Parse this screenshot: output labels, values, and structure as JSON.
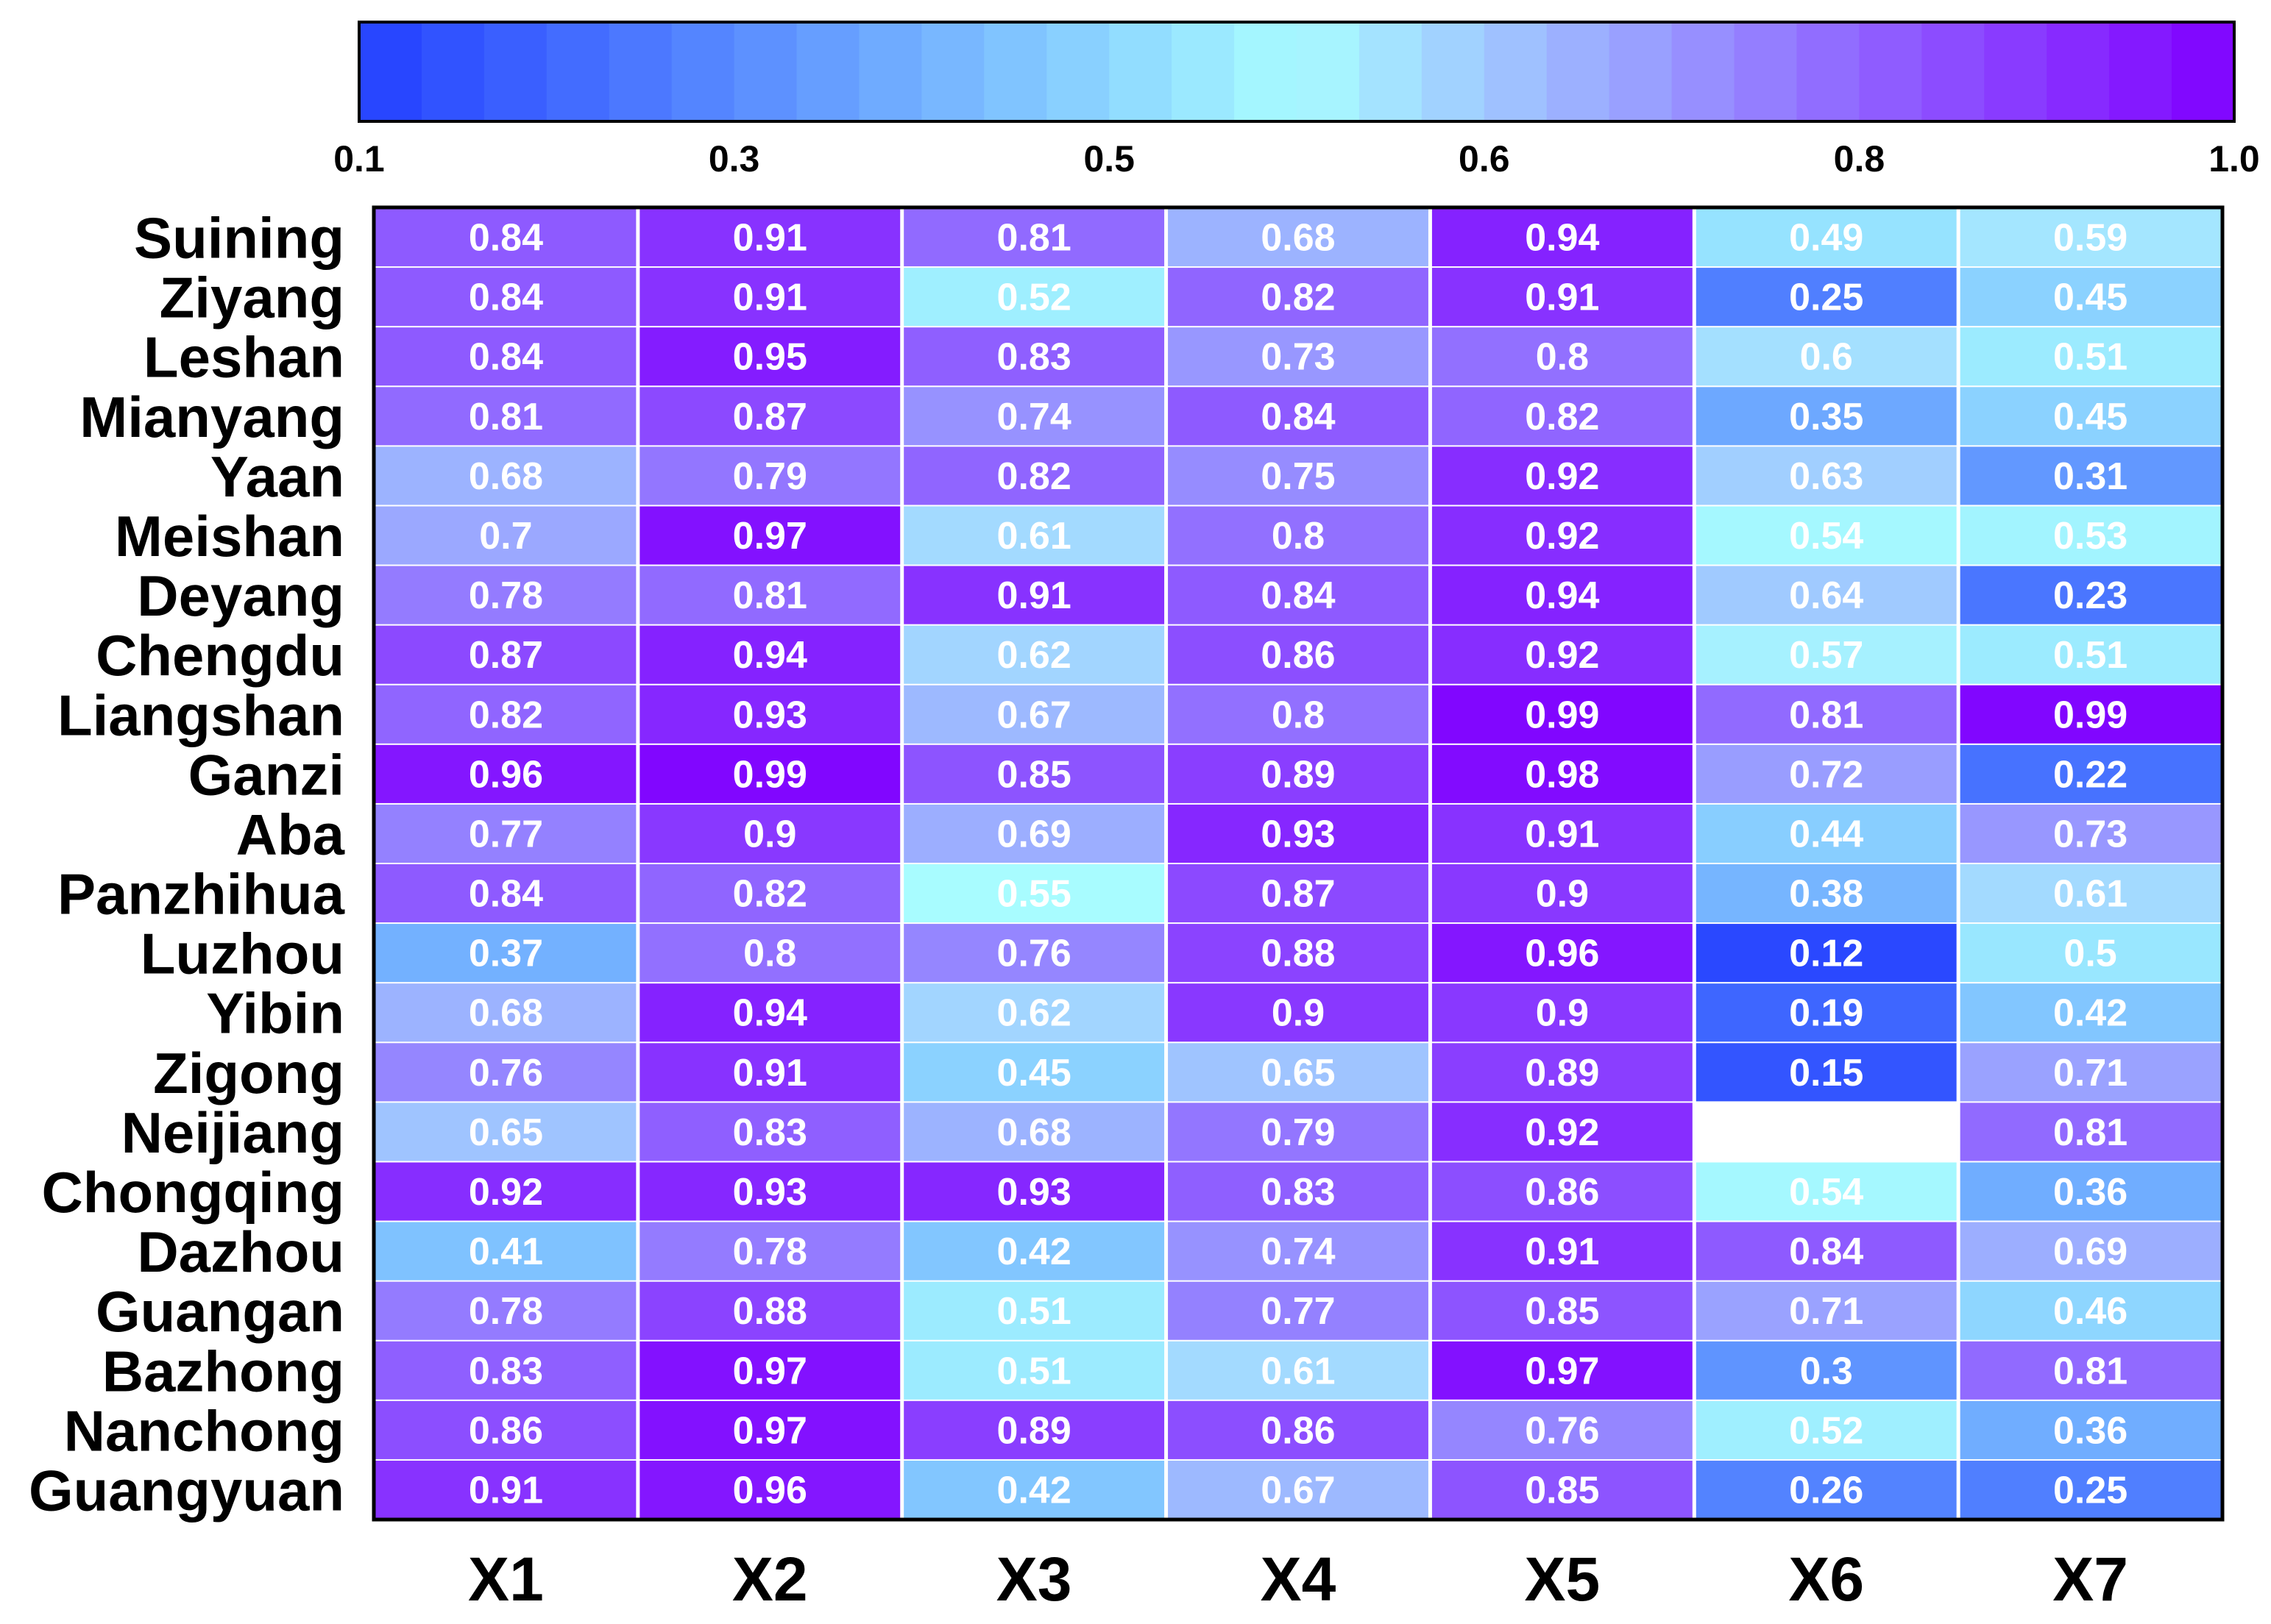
{
  "chart_data": {
    "type": "heatmap",
    "title": "",
    "xlabel": "",
    "ylabel": "",
    "columns": [
      "X1",
      "X2",
      "X3",
      "X4",
      "X5",
      "X6",
      "X7"
    ],
    "rows": [
      "Suining",
      "Ziyang",
      "Leshan",
      "Mianyang",
      "Yaan",
      "Meishan",
      "Deyang",
      "Chengdu",
      "Liangshan",
      "Ganzi",
      "Aba",
      "Panzhihua",
      "Luzhou",
      "Yibin",
      "Zigong",
      "Neijiang",
      "Chongqing",
      "Dazhou",
      "Guangan",
      "Bazhong",
      "Nanchong",
      "Guangyuan"
    ],
    "values": [
      [
        "0.84",
        "0.91",
        "0.81",
        "0.68",
        "0.94",
        "0.49",
        "0.59"
      ],
      [
        "0.84",
        "0.91",
        "0.52",
        "0.82",
        "0.91",
        "0.25",
        "0.45"
      ],
      [
        "0.84",
        "0.95",
        "0.83",
        "0.73",
        "0.8",
        "0.6",
        "0.51"
      ],
      [
        "0.81",
        "0.87",
        "0.74",
        "0.84",
        "0.82",
        "0.35",
        "0.45"
      ],
      [
        "0.68",
        "0.79",
        "0.82",
        "0.75",
        "0.92",
        "0.63",
        "0.31"
      ],
      [
        "0.7",
        "0.97",
        "0.61",
        "0.8",
        "0.92",
        "0.54",
        "0.53"
      ],
      [
        "0.78",
        "0.81",
        "0.91",
        "0.84",
        "0.94",
        "0.64",
        "0.23"
      ],
      [
        "0.87",
        "0.94",
        "0.62",
        "0.86",
        "0.92",
        "0.57",
        "0.51"
      ],
      [
        "0.82",
        "0.93",
        "0.67",
        "0.8",
        "0.99",
        "0.81",
        "0.99"
      ],
      [
        "0.96",
        "0.99",
        "0.85",
        "0.89",
        "0.98",
        "0.72",
        "0.22"
      ],
      [
        "0.77",
        "0.9",
        "0.69",
        "0.93",
        "0.91",
        "0.44",
        "0.73"
      ],
      [
        "0.84",
        "0.82",
        "0.55",
        "0.87",
        "0.9",
        "0.38",
        "0.61"
      ],
      [
        "0.37",
        "0.8",
        "0.76",
        "0.88",
        "0.96",
        "0.12",
        "0.5"
      ],
      [
        "0.68",
        "0.94",
        "0.62",
        "0.9",
        "0.9",
        "0.19",
        "0.42"
      ],
      [
        "0.76",
        "0.91",
        "0.45",
        "0.65",
        "0.89",
        "0.15",
        "0.71"
      ],
      [
        "0.65",
        "0.83",
        "0.68",
        "0.79",
        "0.92",
        null,
        "0.81"
      ],
      [
        "0.92",
        "0.93",
        "0.93",
        "0.83",
        "0.86",
        "0.54",
        "0.36"
      ],
      [
        "0.41",
        "0.78",
        "0.42",
        "0.74",
        "0.91",
        "0.84",
        "0.69"
      ],
      [
        "0.78",
        "0.88",
        "0.51",
        "0.77",
        "0.85",
        "0.71",
        "0.46"
      ],
      [
        "0.83",
        "0.97",
        "0.51",
        "0.61",
        "0.97",
        "0.3",
        "0.81"
      ],
      [
        "0.86",
        "0.97",
        "0.89",
        "0.86",
        "0.76",
        "0.52",
        "0.36"
      ],
      [
        "0.91",
        "0.96",
        "0.42",
        "0.67",
        "0.85",
        "0.26",
        "0.25"
      ]
    ],
    "colorbar": {
      "tick_labels": [
        "0.1",
        "0.3",
        "0.5",
        "0.6",
        "0.8",
        "1.0"
      ],
      "range": [
        0.1,
        1.0
      ],
      "colors": {
        "low": "#2440ff",
        "mid": "#a8fcff",
        "high": "#8000ff"
      },
      "legend_position": "top"
    },
    "missing_color": "#ffffff",
    "grid": true
  }
}
